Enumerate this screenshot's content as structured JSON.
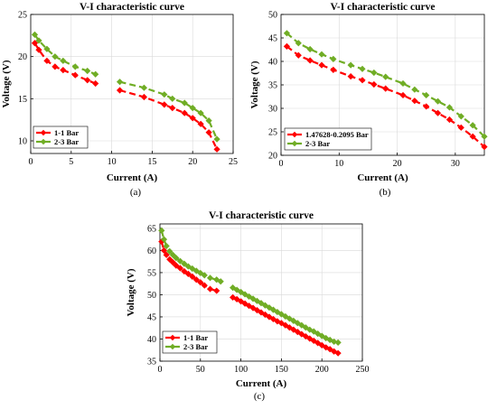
{
  "chart_data": [
    {
      "id": "a",
      "type": "line",
      "title": "V-I characteristic curve",
      "xlabel": "Current (A)",
      "ylabel": "Voltage (V)",
      "caption": "(a)",
      "xlim": [
        0,
        25
      ],
      "ylim": [
        8.5,
        25
      ],
      "xticks": [
        0,
        5,
        10,
        15,
        20,
        25
      ],
      "yticks": [
        10,
        15,
        20,
        25
      ],
      "grid": true,
      "legend_position": "bottom-left",
      "series": [
        {
          "name": "1-1 Bar",
          "color": "#ff0000",
          "marker": "diamond",
          "segments": [
            {
              "x": [
                0.5,
                1,
                2,
                3,
                4,
                5.5,
                7,
                8
              ],
              "y": [
                21.6,
                20.8,
                19.5,
                18.8,
                18.4,
                17.8,
                17.2,
                16.8
              ]
            },
            {
              "x": [
                11,
                14,
                16.5,
                17.5,
                19,
                20,
                21,
                22,
                23
              ],
              "y": [
                16.0,
                15.2,
                14.3,
                13.9,
                13.3,
                12.7,
                12.0,
                11.0,
                9.0
              ]
            }
          ]
        },
        {
          "name": "2-3 Bar",
          "color": "#70ad25",
          "marker": "diamond",
          "segments": [
            {
              "x": [
                0.5,
                1,
                2,
                3,
                4,
                5.5,
                7,
                8
              ],
              "y": [
                22.6,
                21.9,
                20.9,
                20.0,
                19.5,
                18.8,
                18.3,
                17.9
              ]
            },
            {
              "x": [
                11,
                14,
                16.5,
                17.5,
                19,
                20,
                21,
                22,
                23
              ],
              "y": [
                17.0,
                16.3,
                15.5,
                15.0,
                14.5,
                13.9,
                13.3,
                12.4,
                10.2
              ]
            }
          ]
        }
      ]
    },
    {
      "id": "b",
      "type": "line",
      "title": "V-I characteristic curve",
      "xlabel": "Current (A)",
      "ylabel": "Voltage (V)",
      "caption": "(b)",
      "xlim": [
        0,
        35
      ],
      "ylim": [
        20,
        50
      ],
      "xticks": [
        0,
        10,
        20,
        30
      ],
      "yticks": [
        20,
        25,
        30,
        35,
        40,
        45,
        50
      ],
      "grid": true,
      "legend_position": "bottom-left",
      "series": [
        {
          "name": "1.47628-0.2095 Bar",
          "color": "#ff0000",
          "marker": "diamond",
          "segments": [
            {
              "x": [
                1,
                3,
                5,
                7,
                9,
                12,
                14,
                16,
                18,
                21,
                23,
                25,
                27,
                29,
                31,
                33,
                35
              ],
              "y": [
                43.2,
                41.3,
                40.2,
                39.2,
                38.2,
                36.8,
                36.0,
                35.1,
                34.2,
                32.8,
                31.6,
                30.4,
                29.0,
                27.6,
                25.9,
                24.0,
                21.8
              ]
            }
          ]
        },
        {
          "name": "2-3 Bar",
          "color": "#70ad25",
          "marker": "diamond",
          "segments": [
            {
              "x": [
                1,
                3,
                5,
                7,
                9,
                12,
                14,
                16,
                18,
                21,
                23,
                25,
                27,
                29,
                31,
                33,
                35
              ],
              "y": [
                46.0,
                43.9,
                42.6,
                41.5,
                40.5,
                39.2,
                38.4,
                37.6,
                36.7,
                35.3,
                34.0,
                32.8,
                31.5,
                30.2,
                28.3,
                26.4,
                24.0
              ]
            }
          ]
        }
      ]
    },
    {
      "id": "c",
      "type": "line",
      "title": "V-I characteristic curve",
      "xlabel": "Current (A)",
      "ylabel": "Voltage (V)",
      "caption": "(c)",
      "xlim": [
        0,
        250
      ],
      "ylim": [
        35,
        66
      ],
      "xticks": [
        0,
        50,
        100,
        150,
        200,
        250
      ],
      "yticks": [
        35,
        40,
        45,
        50,
        55,
        60,
        65
      ],
      "grid": true,
      "legend_position": "bottom-left",
      "series": [
        {
          "name": "1-1 Bar",
          "color": "#ff0000",
          "marker": "diamond",
          "segments": [
            {
              "x": [
                2,
                5,
                8,
                12,
                16,
                20,
                25,
                30,
                35,
                40,
                45,
                50,
                55,
                62,
                70
              ],
              "y": [
                62.0,
                60.0,
                59.0,
                58.0,
                57.3,
                56.6,
                56.0,
                55.3,
                54.7,
                54.1,
                53.4,
                52.8,
                52.1,
                51.3,
                50.9
              ]
            },
            {
              "x": [
                90,
                95,
                100,
                105,
                110,
                115,
                120,
                125,
                130,
                135,
                140,
                145,
                150,
                155,
                160,
                165,
                170,
                175,
                180,
                185,
                190,
                195,
                200,
                205,
                210,
                215,
                220
              ],
              "y": [
                49.4,
                49.0,
                48.5,
                48.0,
                47.5,
                47.0,
                46.5,
                46.0,
                45.5,
                45.0,
                44.5,
                44.0,
                43.6,
                43.1,
                42.6,
                42.1,
                41.6,
                41.1,
                40.6,
                40.1,
                39.6,
                39.1,
                38.6,
                38.1,
                37.7,
                37.2,
                36.8
              ]
            }
          ]
        },
        {
          "name": "2-3 Bar",
          "color": "#70ad25",
          "marker": "diamond",
          "segments": [
            {
              "x": [
                2,
                5,
                8,
                12,
                16,
                20,
                25,
                30,
                35,
                40,
                45,
                50,
                55,
                62,
                70,
                75
              ],
              "y": [
                64.5,
                62.5,
                61.0,
                59.8,
                59.0,
                58.3,
                57.6,
                57.0,
                56.4,
                55.9,
                55.4,
                54.9,
                54.4,
                53.8,
                53.4,
                53.0
              ]
            },
            {
              "x": [
                90,
                95,
                100,
                105,
                110,
                115,
                120,
                125,
                130,
                135,
                140,
                145,
                150,
                155,
                160,
                165,
                170,
                175,
                180,
                185,
                190,
                195,
                200,
                205,
                210,
                215,
                220
              ],
              "y": [
                51.6,
                51.1,
                50.6,
                50.1,
                49.6,
                49.1,
                48.6,
                48.1,
                47.6,
                47.1,
                46.6,
                46.1,
                45.6,
                45.1,
                44.6,
                44.1,
                43.6,
                43.1,
                42.6,
                42.1,
                41.7,
                41.2,
                40.7,
                40.2,
                39.8,
                39.4,
                39.2
              ]
            }
          ]
        }
      ]
    }
  ]
}
